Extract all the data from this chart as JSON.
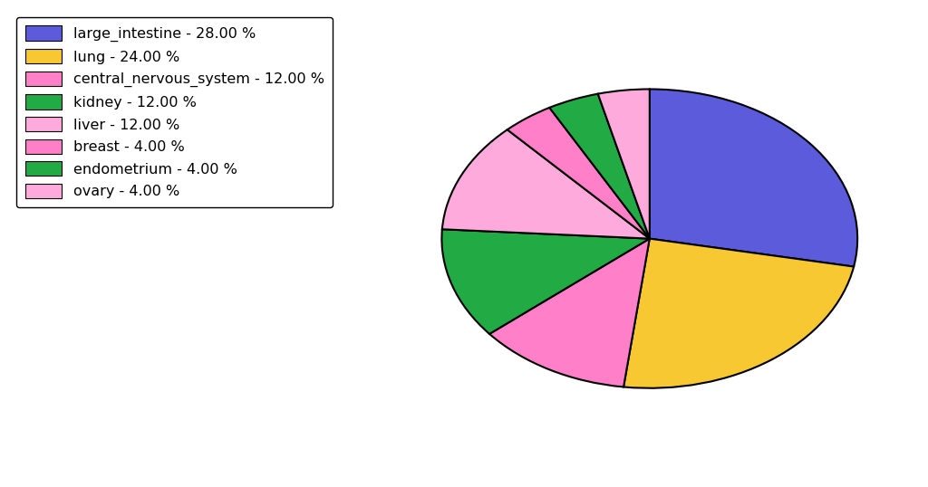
{
  "labels": [
    "large_intestine",
    "lung",
    "central_nervous_system",
    "kidney",
    "liver",
    "breast",
    "endometrium",
    "ovary"
  ],
  "values": [
    28,
    24,
    12,
    12,
    12,
    4,
    4,
    4
  ],
  "colors": [
    "#5b5bdb",
    "#f5c518",
    "#ff88cc",
    "#22aa44",
    "#ff88cc",
    "#ff88cc",
    "#22aa44",
    "#ff88cc"
  ],
  "pie_colors": [
    "#5b5bdb",
    "#f7c832",
    "#ff80c8",
    "#22aa44",
    "#ffaadd",
    "#ff80c8",
    "#22aa44",
    "#ffaadd"
  ],
  "legend_labels": [
    "large_intestine - 28.00 %",
    "lung - 24.00 %",
    "central_nervous_system - 12.00 %",
    "kidney - 12.00 %",
    "liver - 12.00 %",
    "breast - 4.00 %",
    "endometrium - 4.00 %",
    "ovary - 4.00 %"
  ],
  "legend_colors": [
    "#5b5bdb",
    "#f7c832",
    "#ff80c8",
    "#22aa44",
    "#ffaadd",
    "#ff80c8",
    "#22aa44",
    "#ffaadd"
  ],
  "startangle": 90,
  "figsize": [
    10.24,
    5.38
  ],
  "dpi": 100,
  "ellipse_aspect": 0.72
}
